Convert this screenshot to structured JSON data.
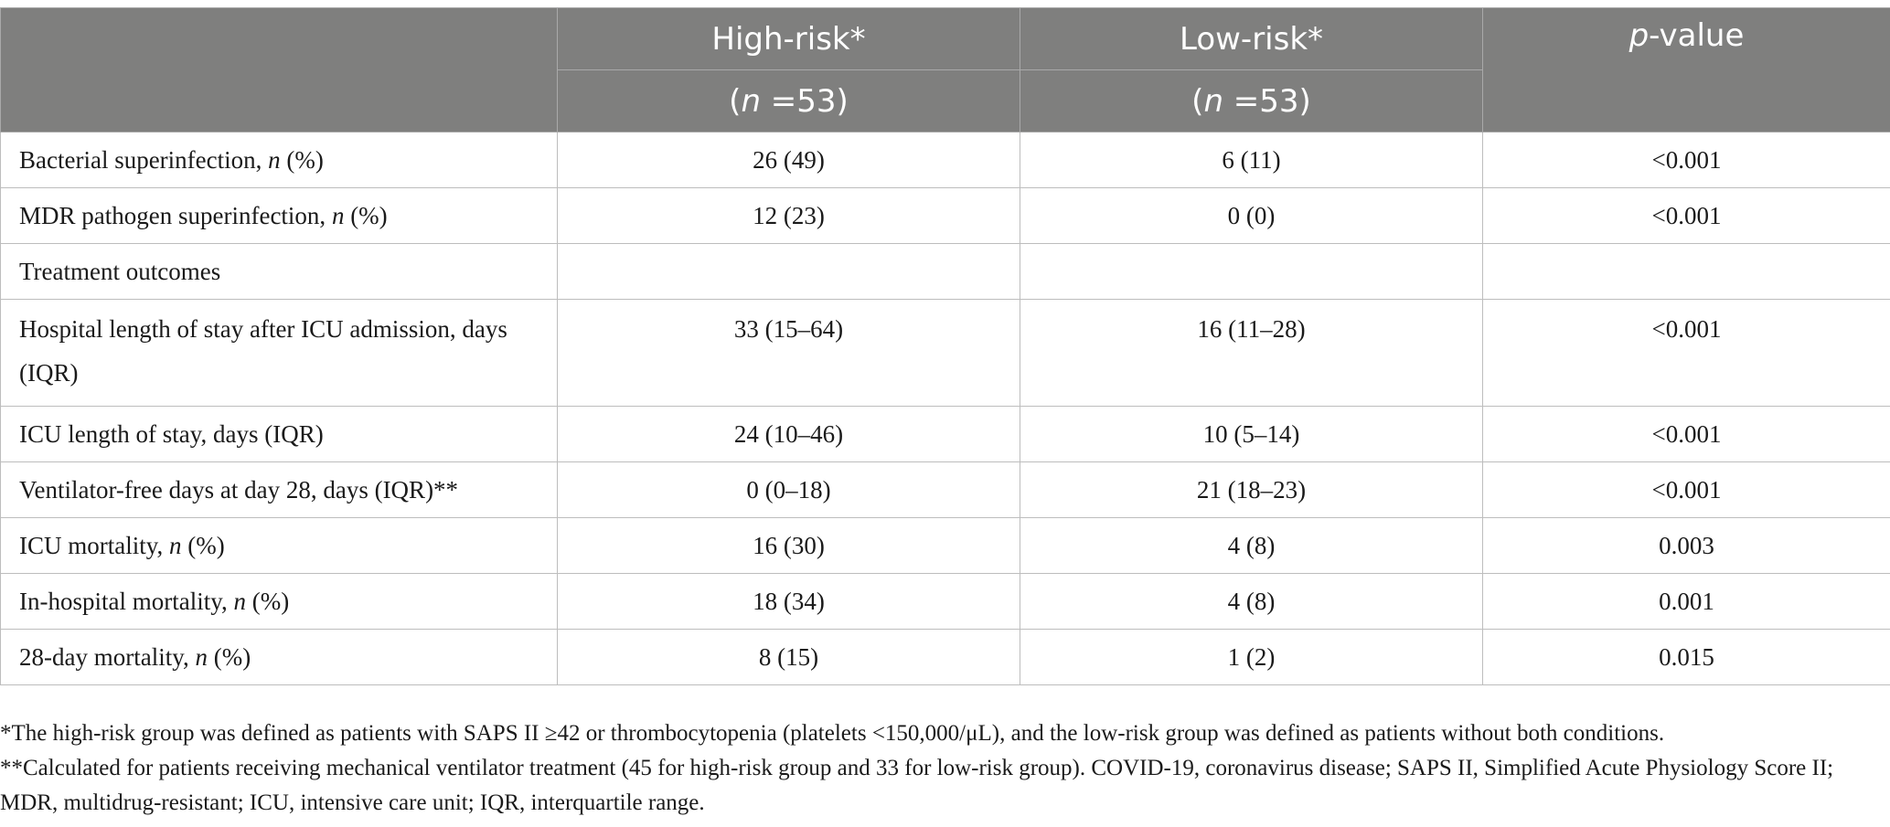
{
  "header": {
    "high_risk": "High-risk*",
    "low_risk": "Low-risk*",
    "p_label_italic": "p",
    "p_label_rest": "-value",
    "n_open": "(",
    "n_italic": "n",
    "n_rest": " =53)"
  },
  "rows": [
    {
      "label": "Bacterial superinfection, ",
      "label_italic": "n",
      "label_tail": " (%)",
      "high": "26 (49)",
      "low": "6 (11)",
      "p": "<0.001"
    },
    {
      "label": "MDR pathogen superinfection, ",
      "label_italic": "n",
      "label_tail": " (%)",
      "high": "12 (23)",
      "low": "0 (0)",
      "p": "<0.001"
    },
    {
      "label": "Treatment outcomes",
      "label_italic": "",
      "label_tail": "",
      "high": "",
      "low": "",
      "p": ""
    },
    {
      "label": "Hospital length of stay after ICU admission, days (IQR)",
      "label_italic": "",
      "label_tail": "",
      "high": "33 (15–64)",
      "low": "16 (11–28)",
      "p": "<0.001"
    },
    {
      "label": "ICU length of stay, days (IQR)",
      "label_italic": "",
      "label_tail": "",
      "high": "24 (10–46)",
      "low": "10 (5–14)",
      "p": "<0.001"
    },
    {
      "label": "Ventilator-free days at day 28, days (IQR)**",
      "label_italic": "",
      "label_tail": "",
      "high": "0 (0–18)",
      "low": "21 (18–23)",
      "p": "<0.001"
    },
    {
      "label": "ICU mortality, ",
      "label_italic": "n",
      "label_tail": " (%)",
      "high": "16 (30)",
      "low": "4 (8)",
      "p": "0.003"
    },
    {
      "label": "In-hospital mortality, ",
      "label_italic": "n",
      "label_tail": " (%)",
      "high": "18 (34)",
      "low": "4 (8)",
      "p": "0.001"
    },
    {
      "label": "28-day mortality, ",
      "label_italic": "n",
      "label_tail": " (%)",
      "high": "8 (15)",
      "low": "1 (2)",
      "p": "0.015"
    }
  ],
  "footnotes": {
    "note1": "*The high-risk group was defined as patients with SAPS II ≥42 or thrombocytopenia (platelets <150,000/μL), and the low-risk group was defined as patients without both conditions.",
    "note2": "**Calculated for patients receiving mechanical ventilator treatment (45 for high-risk group and 33 for low-risk group). COVID-19, coronavirus disease; SAPS II, Simplified Acute Physiology Score II; MDR, multidrug-resistant; ICU, intensive care unit; IQR, interquartile range."
  }
}
